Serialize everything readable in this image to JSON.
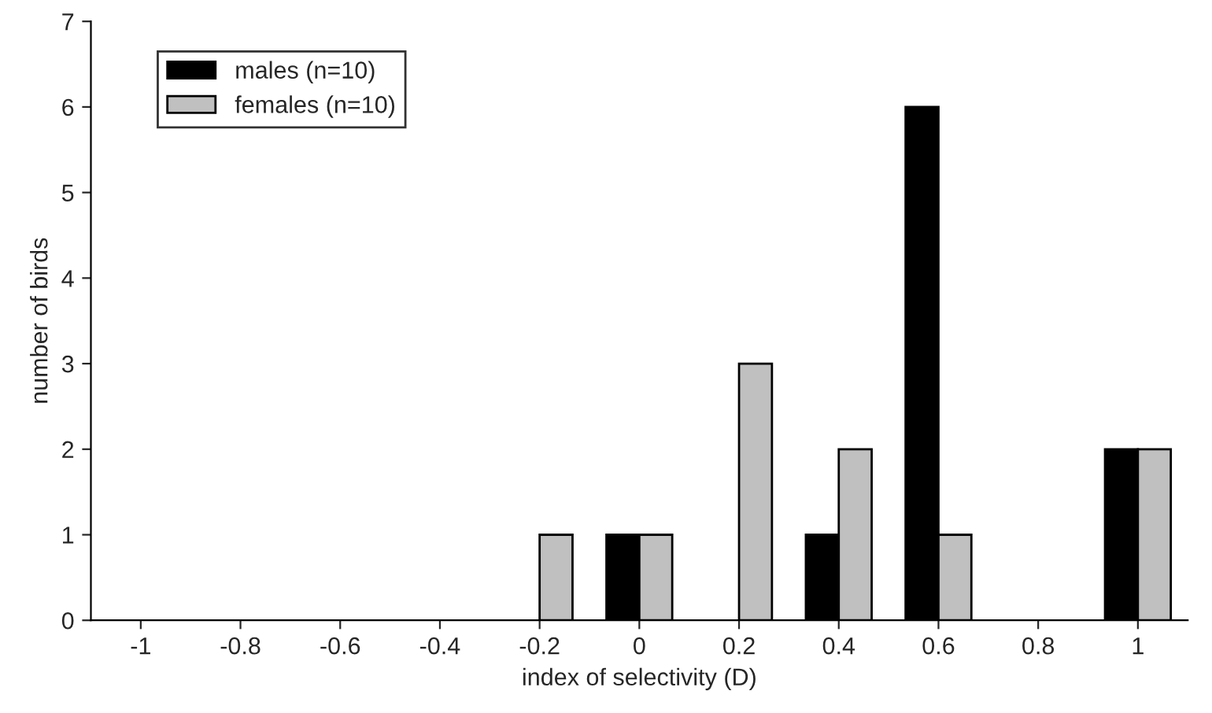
{
  "chart_data": {
    "type": "bar",
    "xlabel": "index of selectivity (D)",
    "ylabel": "number of birds",
    "categories": [
      "-1",
      "-0.8",
      "-0.6",
      "-0.4",
      "-0.2",
      "0",
      "0.2",
      "0.4",
      "0.6",
      "0.8",
      "1"
    ],
    "series": [
      {
        "name": "males (n=10)",
        "color": "#000000",
        "values": [
          0,
          0,
          0,
          0,
          0,
          1,
          0,
          1,
          6,
          0,
          2
        ]
      },
      {
        "name": "females (n=10)",
        "color": "#c0c0c0",
        "values": [
          0,
          0,
          0,
          0,
          1,
          1,
          3,
          2,
          1,
          0,
          2
        ]
      }
    ],
    "ylim": [
      0,
      7
    ],
    "yticks": [
      0,
      1,
      2,
      3,
      4,
      5,
      6,
      7
    ],
    "grid": false,
    "legend": "top left"
  }
}
